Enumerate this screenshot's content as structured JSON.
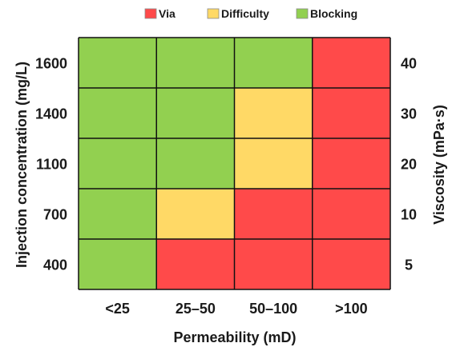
{
  "chart_data": {
    "type": "heatmap",
    "legend": {
      "placement": "top-center",
      "entries": [
        {
          "label": "Via",
          "color": "#ff4a4a"
        },
        {
          "label": "Difficulty",
          "color": "#ffd966"
        },
        {
          "label": "Blocking",
          "color": "#92d050"
        }
      ]
    },
    "x_categories": [
      "<25",
      "25–50",
      "50–100",
      ">100"
    ],
    "y_left_categories": [
      "400",
      "700",
      "1100",
      "1400",
      "1600"
    ],
    "y_right_categories": [
      "5",
      "10",
      "20",
      "30",
      "40"
    ],
    "xlabel": "Permeability (mD)",
    "ylabel_left": "Injection concentration (mg/L)",
    "ylabel_right": "Viscosity (mPa·s)",
    "cells": [
      [
        "Blocking",
        "Via",
        "Via",
        "Via"
      ],
      [
        "Blocking",
        "Difficulty",
        "Via",
        "Via"
      ],
      [
        "Blocking",
        "Blocking",
        "Difficulty",
        "Via"
      ],
      [
        "Blocking",
        "Blocking",
        "Difficulty",
        "Via"
      ],
      [
        "Blocking",
        "Blocking",
        "Blocking",
        "Via"
      ]
    ]
  }
}
